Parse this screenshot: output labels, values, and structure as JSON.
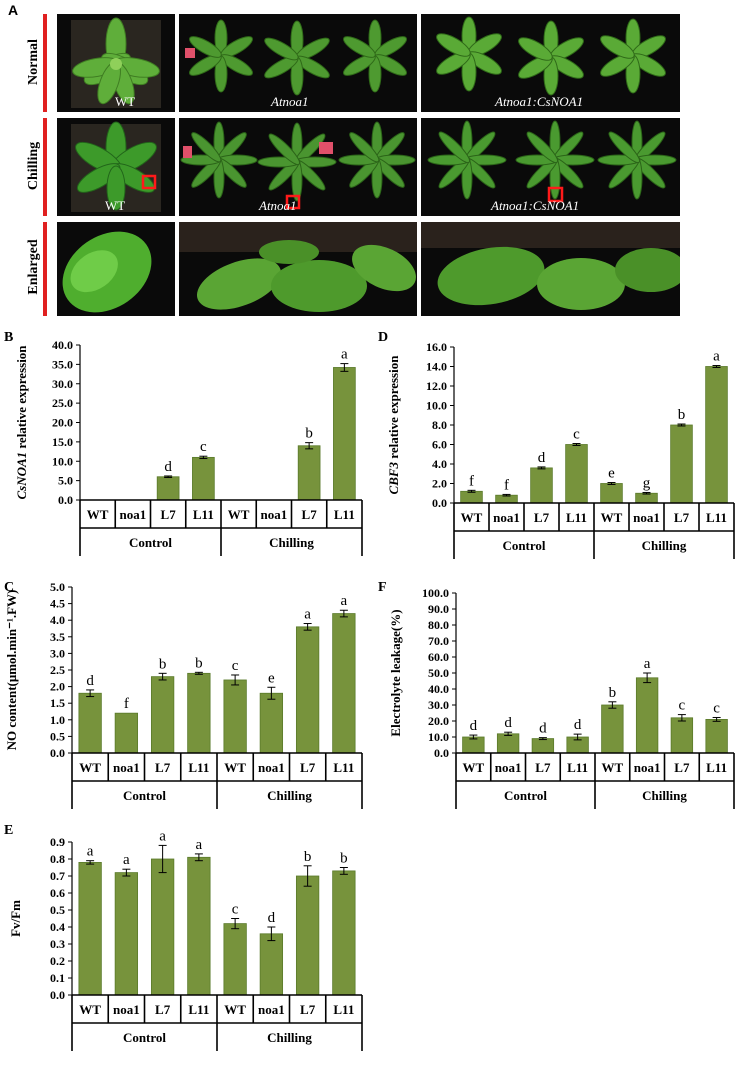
{
  "panel_a": {
    "letter": "A",
    "rows": [
      "Normal",
      "Chilling",
      "Enlarged"
    ],
    "labels": {
      "normal": [
        "WT",
        "Atnoa1",
        "Atnoa1:CsNOA1"
      ],
      "chilling": [
        "WT",
        "Atnoa1",
        "Atnoa1:CsNOA1"
      ]
    }
  },
  "chart_data": [
    {
      "id": "B",
      "letter": "B",
      "type": "bar",
      "ylabel": "CsNOA1 relative expression",
      "ylabel_italic_part": "CsNOA1",
      "ylim": [
        0,
        40
      ],
      "ystep": 5,
      "decimals": 1,
      "categories": [
        "WT",
        "noa1",
        "L7",
        "L11",
        "WT",
        "noa1",
        "L7",
        "L11"
      ],
      "groups": [
        "Control",
        "Chilling"
      ],
      "values": [
        0,
        0,
        6.0,
        11.0,
        0,
        0,
        14.0,
        34.2
      ],
      "errors": [
        0,
        0,
        0.2,
        0.3,
        0,
        0,
        0.8,
        1.0
      ],
      "letters": [
        "",
        "",
        "d",
        "c",
        "",
        "",
        "b",
        "a"
      ],
      "bar_color": "#77933c"
    },
    {
      "id": "D",
      "letter": "D",
      "type": "bar",
      "ylabel": "CBF3 relative expression",
      "ylabel_italic_part": "CBF3",
      "ylim": [
        0,
        16
      ],
      "ystep": 2,
      "decimals": 1,
      "categories": [
        "WT",
        "noa1",
        "L7",
        "L11",
        "WT",
        "noa1",
        "L7",
        "L11"
      ],
      "groups": [
        "Control",
        "Chilling"
      ],
      "values": [
        1.2,
        0.8,
        3.6,
        6.0,
        2.0,
        1.0,
        8.0,
        14.0
      ],
      "errors": [
        0.1,
        0.08,
        0.1,
        0.1,
        0.1,
        0.08,
        0.1,
        0.1
      ],
      "letters": [
        "f",
        "f",
        "d",
        "c",
        "e",
        "g",
        "b",
        "a"
      ],
      "bar_color": "#77933c"
    },
    {
      "id": "C",
      "letter": "C",
      "type": "bar",
      "ylabel": "NO content(μmol.min⁻¹.FW)",
      "ylim": [
        0,
        5
      ],
      "ystep": 0.5,
      "decimals": 1,
      "categories": [
        "WT",
        "noa1",
        "L7",
        "L11",
        "WT",
        "noa1",
        "L7",
        "L11"
      ],
      "groups": [
        "Control",
        "Chilling"
      ],
      "values": [
        1.8,
        1.2,
        2.3,
        2.4,
        2.2,
        1.8,
        3.8,
        4.2
      ],
      "errors": [
        0.1,
        0,
        0.1,
        0.03,
        0.15,
        0.18,
        0.1,
        0.1
      ],
      "letters": [
        "d",
        "f",
        "b",
        "b",
        "c",
        "e",
        "a",
        "a"
      ],
      "bar_color": "#77933c"
    },
    {
      "id": "F",
      "letter": "F",
      "type": "bar",
      "ylabel": "Electrolyte leakage(%)",
      "ylim": [
        0,
        100
      ],
      "ystep": 10,
      "decimals": 1,
      "categories": [
        "WT",
        "noa1",
        "L7",
        "L11",
        "WT",
        "noa1",
        "L7",
        "L11"
      ],
      "groups": [
        "Control",
        "Chilling"
      ],
      "values": [
        10.0,
        12.0,
        9.0,
        10.0,
        30.0,
        47.0,
        22.0,
        21.0
      ],
      "errors": [
        1.2,
        1.0,
        0.6,
        1.8,
        2.0,
        3.0,
        2.0,
        1.2
      ],
      "letters": [
        "d",
        "d",
        "d",
        "d",
        "b",
        "a",
        "c",
        "c"
      ],
      "bar_color": "#77933c"
    },
    {
      "id": "E",
      "letter": "E",
      "type": "bar",
      "ylabel": "Fv/Fm",
      "ylim": [
        0,
        0.9
      ],
      "ystep": 0.1,
      "decimals": 1,
      "categories": [
        "WT",
        "noa1",
        "L7",
        "L11",
        "WT",
        "noa1",
        "L7",
        "L11"
      ],
      "groups": [
        "Control",
        "Chilling"
      ],
      "values": [
        0.78,
        0.72,
        0.8,
        0.81,
        0.42,
        0.36,
        0.7,
        0.73
      ],
      "errors": [
        0.01,
        0.02,
        0.08,
        0.02,
        0.03,
        0.04,
        0.06,
        0.02
      ],
      "letters": [
        "a",
        "a",
        "a",
        "a",
        "c",
        "d",
        "b",
        "b"
      ],
      "bar_color": "#77933c"
    }
  ]
}
